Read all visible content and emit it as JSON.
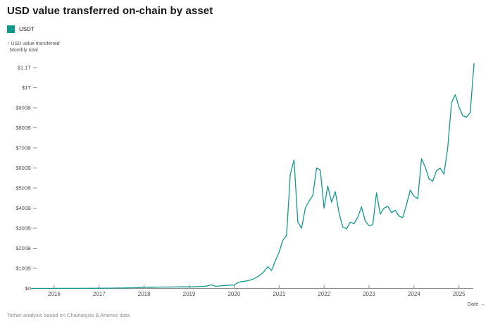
{
  "title": "USD value transferred on-chain by asset",
  "legend": {
    "items": [
      {
        "label": "USDT",
        "color": "#12998e"
      }
    ]
  },
  "y_axis_caption_line1": "↑ USD value transferred",
  "y_axis_caption_line2": "Monthly total",
  "x_axis_title": "Date →",
  "footer": "Tether analysis based on Chainalysis & Artemis data",
  "colors": {
    "line": "#12998e",
    "axis": "#8d8d8d",
    "tick_text": "#4f4f4f",
    "title_text": "#161616"
  },
  "chart_data": {
    "type": "line",
    "title": "USD value transferred on-chain by asset",
    "subtitle": "USD value transferred, Monthly total",
    "unit": "USD billions",
    "cadence": "monthly",
    "x_start_month": "2015-07",
    "x_end_month": "2025-05",
    "xlabel": "Date",
    "ylabel": "USD value transferred (monthly total)",
    "ylim": [
      0,
      1150
    ],
    "grid": false,
    "legend_position": "top-left",
    "x_tick_labels": [
      "2016",
      "2017",
      "2018",
      "2019",
      "2020",
      "2021",
      "2022",
      "2023",
      "2024",
      "2025"
    ],
    "y_ticks": [
      {
        "label": "$0",
        "value": 0
      },
      {
        "label": "$100B",
        "value": 100
      },
      {
        "label": "$200B",
        "value": 200
      },
      {
        "label": "$300B",
        "value": 300
      },
      {
        "label": "$400B",
        "value": 400
      },
      {
        "label": "$500B",
        "value": 500
      },
      {
        "label": "$600B",
        "value": 600
      },
      {
        "label": "$700B",
        "value": 700
      },
      {
        "label": "$800B",
        "value": 800
      },
      {
        "label": "$900B",
        "value": 900
      },
      {
        "label": "$1T",
        "value": 1000
      },
      {
        "label": "$1.1T",
        "value": 1100
      }
    ],
    "series": [
      {
        "name": "USDT",
        "color": "#12998e",
        "monthly_values_billions": [
          0,
          0,
          0,
          0,
          0.1,
          0.1,
          0.2,
          0.2,
          0.3,
          0.3,
          0.4,
          0.4,
          0.5,
          0.5,
          0.6,
          0.7,
          0.8,
          0.9,
          1,
          1.1,
          1.3,
          1.5,
          1.7,
          2,
          2.2,
          2.5,
          2.8,
          3.2,
          3.8,
          4.5,
          5.5,
          6,
          6,
          6.5,
          6.5,
          7,
          7,
          7,
          7.5,
          7.5,
          8,
          8,
          8,
          8,
          9,
          10,
          11,
          13,
          18,
          11,
          12,
          14,
          15,
          16,
          17,
          29,
          34,
          36,
          40,
          46,
          55,
          67,
          85,
          108,
          90,
          137,
          180,
          240,
          265,
          570,
          640,
          330,
          300,
          400,
          435,
          464,
          600,
          590,
          400,
          510,
          429,
          482,
          377,
          306,
          297,
          330,
          322,
          355,
          406,
          335,
          312,
          318,
          476,
          370,
          400,
          409,
          378,
          390,
          360,
          353,
          418,
          490,
          460,
          447,
          646,
          605,
          546,
          534,
          587,
          599,
          570,
          700,
          926,
          965,
          905,
          860,
          853,
          876,
          1120
        ]
      }
    ]
  }
}
